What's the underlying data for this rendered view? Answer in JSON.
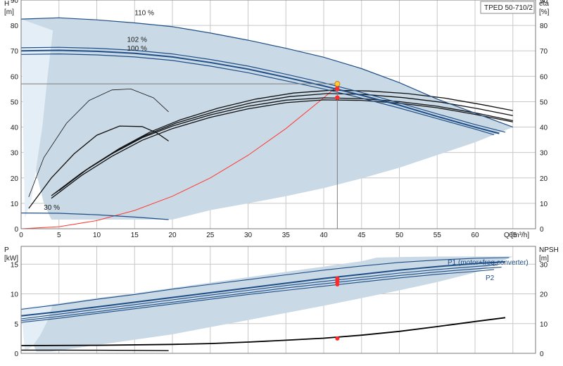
{
  "chart_data": [
    {
      "type": "line",
      "name": "head",
      "title": "TPED 50-710/2",
      "xlabel": "Q [m³/h]",
      "ylabel_left": [
        "H",
        "[m]"
      ],
      "ylabel_right": [
        "eta",
        "[%]"
      ],
      "xlim": [
        0,
        68
      ],
      "ylim": [
        0,
        90
      ],
      "xticks": [
        0,
        5,
        10,
        15,
        20,
        25,
        30,
        35,
        40,
        45,
        50,
        55,
        60,
        65
      ],
      "yticks": [
        0,
        10,
        20,
        30,
        40,
        50,
        60,
        70,
        80,
        90
      ],
      "grid": true,
      "colors": {
        "band": "#c9d9e6",
        "band_light": "#e4eef6",
        "curve": "#1f4e86",
        "eta": "#111111",
        "system": "#ff3b30",
        "op_marker": "#ff2a2a",
        "op_highlight": "#ffcc33",
        "op_line": "#7d7d7d"
      },
      "hq_curves": [
        {
          "label": "110 %",
          "x": [
            0,
            5,
            10,
            15,
            20,
            25,
            30,
            35,
            40,
            45,
            50,
            55,
            60,
            65
          ],
          "y": [
            82.5,
            83,
            82.2,
            81,
            79.5,
            77,
            74.2,
            71,
            67.5,
            63,
            57.5,
            51,
            45.5,
            40
          ]
        },
        {
          "label": "102 %",
          "x": [
            0,
            5,
            10,
            15,
            20,
            25,
            30,
            35,
            40,
            45,
            50,
            55,
            60,
            64
          ],
          "y": [
            71.2,
            71.4,
            71,
            70.2,
            68.8,
            66.6,
            64,
            60.8,
            57.4,
            53.6,
            49.5,
            45.2,
            41,
            38
          ]
        },
        {
          "label": "100 %",
          "x": [
            0,
            5,
            10,
            15,
            20,
            25,
            30,
            35,
            40,
            45,
            50,
            55,
            60,
            62.5
          ],
          "y": [
            68.6,
            68.8,
            68.4,
            67.6,
            66.2,
            64,
            61.4,
            58.2,
            55,
            51.4,
            47.5,
            43.3,
            39.2,
            37
          ]
        },
        {
          "label": "30 %",
          "x": [
            0,
            5,
            10,
            15,
            19.5
          ],
          "y": [
            6.2,
            6.1,
            5.5,
            4.6,
            3.6
          ]
        }
      ],
      "hq_curve_center": {
        "x": [
          0,
          5,
          10,
          15,
          20,
          25,
          30,
          35,
          40,
          45,
          50,
          55,
          60,
          63.2
        ],
        "y": [
          70,
          70.2,
          69.8,
          69,
          67.6,
          65.4,
          62.8,
          59.6,
          56.2,
          52.5,
          48.6,
          44.2,
          40,
          37.5
        ]
      },
      "eta_curves": [
        {
          "x": [
            1,
            3,
            6,
            9,
            12,
            14.5,
            17.5,
            19.5
          ],
          "y": [
            12.5,
            28,
            41.5,
            50.5,
            54.6,
            55,
            51.5,
            46
          ]
        },
        {
          "x": [
            1,
            4,
            7,
            10,
            13,
            16,
            18,
            19.5
          ],
          "y": [
            8,
            20,
            29.5,
            36.8,
            40.4,
            40.2,
            37.6,
            34.5
          ]
        },
        {
          "x": [
            4,
            8,
            12,
            16,
            20,
            25,
            30,
            35,
            40,
            45,
            50,
            55,
            60,
            65
          ],
          "y": [
            13,
            22,
            29.5,
            35.8,
            40.4,
            44.8,
            48.2,
            50.6,
            51.5,
            51.2,
            50,
            48.2,
            45.6,
            42.5
          ]
        },
        {
          "x": [
            4,
            8,
            12,
            16,
            20,
            25,
            30,
            35,
            40,
            45,
            50,
            55,
            60,
            65
          ],
          "y": [
            12,
            21,
            28.5,
            34.8,
            39.4,
            43.8,
            47.2,
            49.6,
            50.7,
            50.5,
            49.4,
            47.6,
            45,
            42
          ]
        },
        {
          "x": [
            4.5,
            8.5,
            12.5,
            16.5,
            20.5,
            25.5,
            30.5,
            35.5,
            40.5,
            45.5,
            50.5,
            55.5,
            60.5,
            65
          ],
          "y": [
            14,
            23,
            30.4,
            36.8,
            41.6,
            46,
            49.6,
            52,
            53.2,
            52.8,
            51.6,
            49.8,
            47.2,
            44.5
          ]
        },
        {
          "x": [
            5,
            9,
            13,
            17,
            21,
            26,
            31,
            36,
            41,
            46,
            51,
            56,
            61,
            65
          ],
          "y": [
            15,
            24,
            31.6,
            38,
            42.8,
            47.4,
            51,
            53.4,
            54.5,
            54.2,
            53.2,
            51.4,
            48.8,
            46.5
          ]
        }
      ],
      "system_curve": {
        "x": [
          0,
          5,
          10,
          15,
          20,
          25,
          30,
          35,
          40,
          42
        ],
        "y": [
          0,
          0.8,
          3.2,
          7.2,
          12.8,
          20,
          28.9,
          39.4,
          51.5,
          56.7
        ]
      },
      "band_outer": {
        "x": [
          0,
          5,
          10,
          15,
          20,
          25,
          30,
          35,
          40,
          45,
          50,
          55,
          60,
          65,
          65,
          60,
          55,
          50,
          45,
          40,
          35,
          30,
          25,
          20,
          4,
          3,
          2,
          1,
          0.5
        ],
        "y": [
          82.5,
          83,
          82.2,
          81,
          79.5,
          77,
          74.2,
          71,
          67.5,
          63,
          57.5,
          51,
          45.5,
          40,
          40,
          34,
          29,
          24,
          19.8,
          16,
          12.8,
          10,
          7.3,
          3.6,
          3.6,
          10,
          22,
          50,
          75
        ]
      },
      "band_light_edge": {
        "x": [
          0,
          4.2,
          3.5,
          2.8,
          2,
          1.4,
          0.5
        ],
        "y": [
          82.5,
          78,
          60,
          40,
          24,
          12,
          4
        ]
      },
      "operating_point": {
        "x": 41.8,
        "y_head": 57,
        "y_eta": 51.6,
        "mark_values": [
          57,
          55,
          51.6
        ]
      },
      "eta_axis_ylim": [
        0,
        90
      ]
    },
    {
      "type": "line",
      "name": "power_npsh",
      "xlabel": "",
      "ylabel_left": [
        "P",
        "[kW]"
      ],
      "ylabel_right": [
        "NPSH",
        "[m]"
      ],
      "xlim": [
        0,
        68
      ],
      "ylim": [
        0,
        18
      ],
      "yticks": [
        0,
        5,
        10,
        15
      ],
      "npsh_ylim": [
        0,
        36
      ],
      "npsh_ticks": [
        0,
        10,
        20,
        30
      ],
      "grid": true,
      "power_curves": [
        {
          "label": "P1 (motor+freq.converter)",
          "x": [
            0,
            5,
            10,
            15,
            20,
            25,
            30,
            35,
            40,
            45,
            50,
            55,
            60,
            64
          ],
          "y": [
            6.3,
            7,
            7.8,
            8.6,
            9.4,
            10.2,
            11,
            11.8,
            12.6,
            13.3,
            14,
            14.6,
            15.1,
            15.4
          ]
        },
        {
          "label": "P2",
          "x": [
            0,
            5,
            10,
            15,
            20,
            25,
            30,
            35,
            40,
            45,
            50,
            55,
            60,
            63.5
          ],
          "y": [
            5.5,
            6.2,
            7,
            7.8,
            8.6,
            9.4,
            10.2,
            11,
            11.7,
            12.4,
            13.1,
            13.7,
            14.2,
            14.5
          ]
        },
        {
          "label": "",
          "x": [
            0,
            5,
            10,
            15,
            20,
            25,
            30,
            35,
            40,
            45,
            50,
            55,
            60,
            63
          ],
          "y": [
            5.8,
            6.6,
            7.4,
            8.2,
            9,
            9.8,
            10.6,
            11.4,
            12.1,
            12.8,
            13.5,
            14.1,
            14.6,
            14.9
          ]
        },
        {
          "label": "",
          "x": [
            0,
            5,
            10,
            15,
            20,
            25,
            30,
            35,
            40,
            45,
            50,
            55,
            60,
            62.5
          ],
          "y": [
            5.2,
            5.9,
            6.7,
            7.5,
            8.3,
            9.1,
            9.9,
            10.6,
            11.3,
            12,
            12.7,
            13.3,
            13.8,
            14.1
          ]
        },
        {
          "label": "",
          "x": [
            0,
            5,
            10,
            15,
            20,
            25,
            30,
            35,
            40,
            45,
            50,
            55,
            60,
            64.5
          ],
          "y": [
            7.4,
            8.2,
            9.1,
            9.9,
            10.8,
            11.6,
            12.4,
            13.2,
            14,
            14.7,
            15.3,
            15.7,
            16,
            16.1
          ]
        }
      ],
      "npsh_curve": {
        "x": [
          0,
          10,
          20,
          25,
          30,
          35,
          40,
          45,
          50,
          55,
          60,
          64
        ],
        "y": [
          2.6,
          2.7,
          3,
          3.3,
          3.8,
          4.4,
          5.1,
          6.1,
          7.4,
          9,
          10.7,
          12
        ]
      },
      "npsh_low_curve": {
        "x": [
          0,
          5,
          10,
          15,
          19.5
        ],
        "y": [
          1.1,
          1.1,
          1.05,
          1,
          0.9
        ]
      },
      "band_outer": {
        "x": [
          0,
          5,
          10,
          15,
          20,
          25,
          30,
          35,
          40,
          45,
          47,
          50,
          55,
          60,
          65,
          65,
          60,
          55,
          50,
          45,
          40,
          35,
          30,
          25,
          20,
          4,
          2,
          0.5
        ],
        "y": [
          7.6,
          8.4,
          9.3,
          10.1,
          11,
          11.9,
          12.8,
          13.7,
          14.6,
          15.5,
          16.1,
          16.2,
          16.3,
          16.3,
          16.3,
          16.3,
          13.6,
          12,
          10.6,
          9.3,
          8,
          6.8,
          5.6,
          4.4,
          3.2,
          0.3,
          0.3,
          5
        ]
      },
      "band_light_edge": {
        "x": [
          0,
          4.2,
          3.5,
          2.5,
          1.5,
          0.5
        ],
        "y": [
          7.6,
          8.3,
          5.5,
          3,
          1.2,
          0.3
        ]
      },
      "operating_point": {
        "x": 41.8,
        "p_values": [
          12.6,
          12.1,
          11.6
        ],
        "npsh_value": 5
      }
    }
  ]
}
